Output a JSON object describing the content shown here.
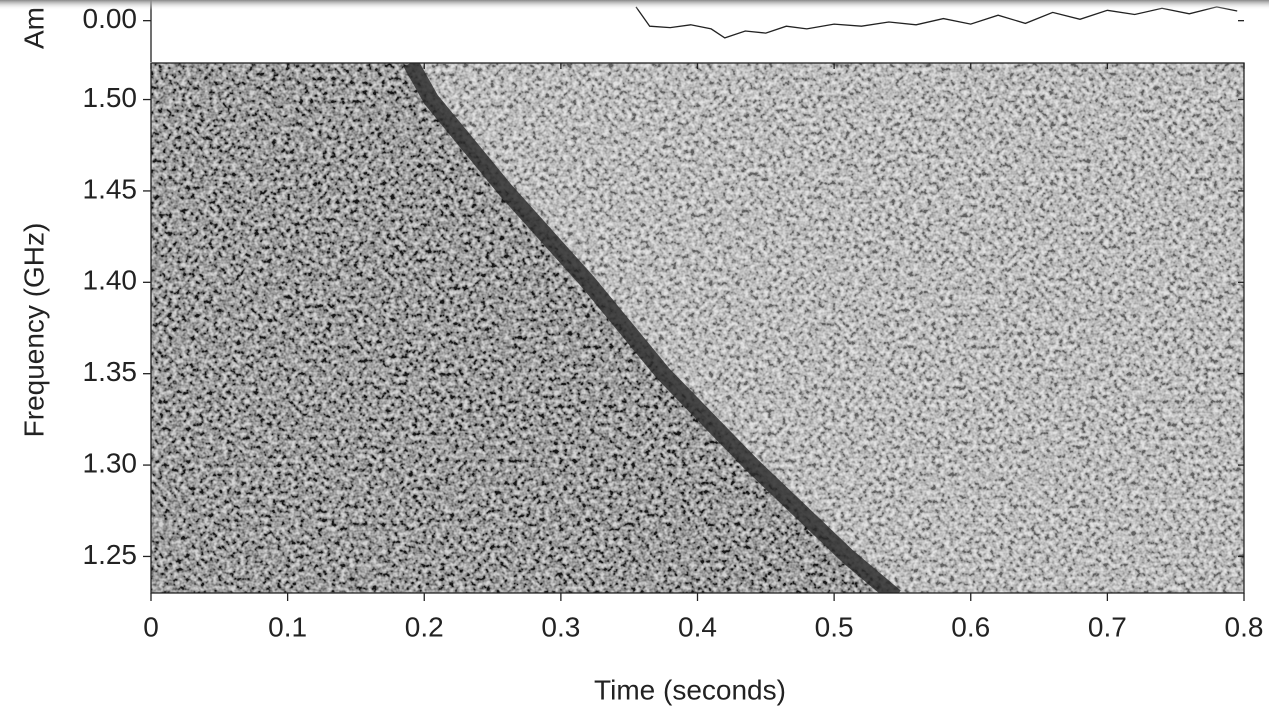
{
  "chart_data": [
    {
      "type": "line",
      "y_label": "Am",
      "xlim": [
        0,
        0.8
      ],
      "ylim": [
        -0.06,
        0.03
      ],
      "yticks": [
        {
          "value": 0,
          "label": "0.00"
        }
      ],
      "x": [
        0.355,
        0.365,
        0.38,
        0.395,
        0.41,
        0.42,
        0.435,
        0.45,
        0.465,
        0.48,
        0.5,
        0.52,
        0.54,
        0.56,
        0.58,
        0.6,
        0.62,
        0.64,
        0.66,
        0.68,
        0.7,
        0.72,
        0.74,
        0.76,
        0.78,
        0.795
      ],
      "series": [
        {
          "color": "#222222",
          "values": [
            0.02,
            -0.008,
            -0.01,
            -0.006,
            -0.012,
            -0.025,
            -0.015,
            -0.018,
            -0.008,
            -0.012,
            -0.005,
            -0.008,
            -0.002,
            -0.006,
            0.003,
            -0.005,
            0.008,
            -0.004,
            0.012,
            0.002,
            0.015,
            0.009,
            0.018,
            0.01,
            0.02,
            0.014
          ]
        }
      ]
    },
    {
      "type": "line",
      "x_label": "Time (seconds)",
      "y_label": "Frequency (GHz)",
      "xlim": [
        0,
        0.8
      ],
      "ylim": [
        1.23,
        1.52
      ],
      "xticks": [
        0,
        0.1,
        0.2,
        0.3,
        0.4,
        0.5,
        0.6,
        0.7,
        0.8
      ],
      "yticks": [
        {
          "value": 1.25,
          "label": "1.25"
        },
        {
          "value": 1.3,
          "label": "1.30"
        },
        {
          "value": 1.35,
          "label": "1.35"
        },
        {
          "value": 1.4,
          "label": "1.40"
        },
        {
          "value": 1.45,
          "label": "1.45"
        },
        {
          "value": 1.5,
          "label": "1.50"
        }
      ],
      "x": [
        0.19,
        0.205,
        0.26,
        0.32,
        0.375,
        0.44,
        0.51,
        0.545
      ],
      "series": [
        {
          "color": "#2e2e2e",
          "values": [
            1.52,
            1.5,
            1.45,
            1.4,
            1.35,
            1.3,
            1.25,
            1.228
          ]
        }
      ]
    }
  ]
}
